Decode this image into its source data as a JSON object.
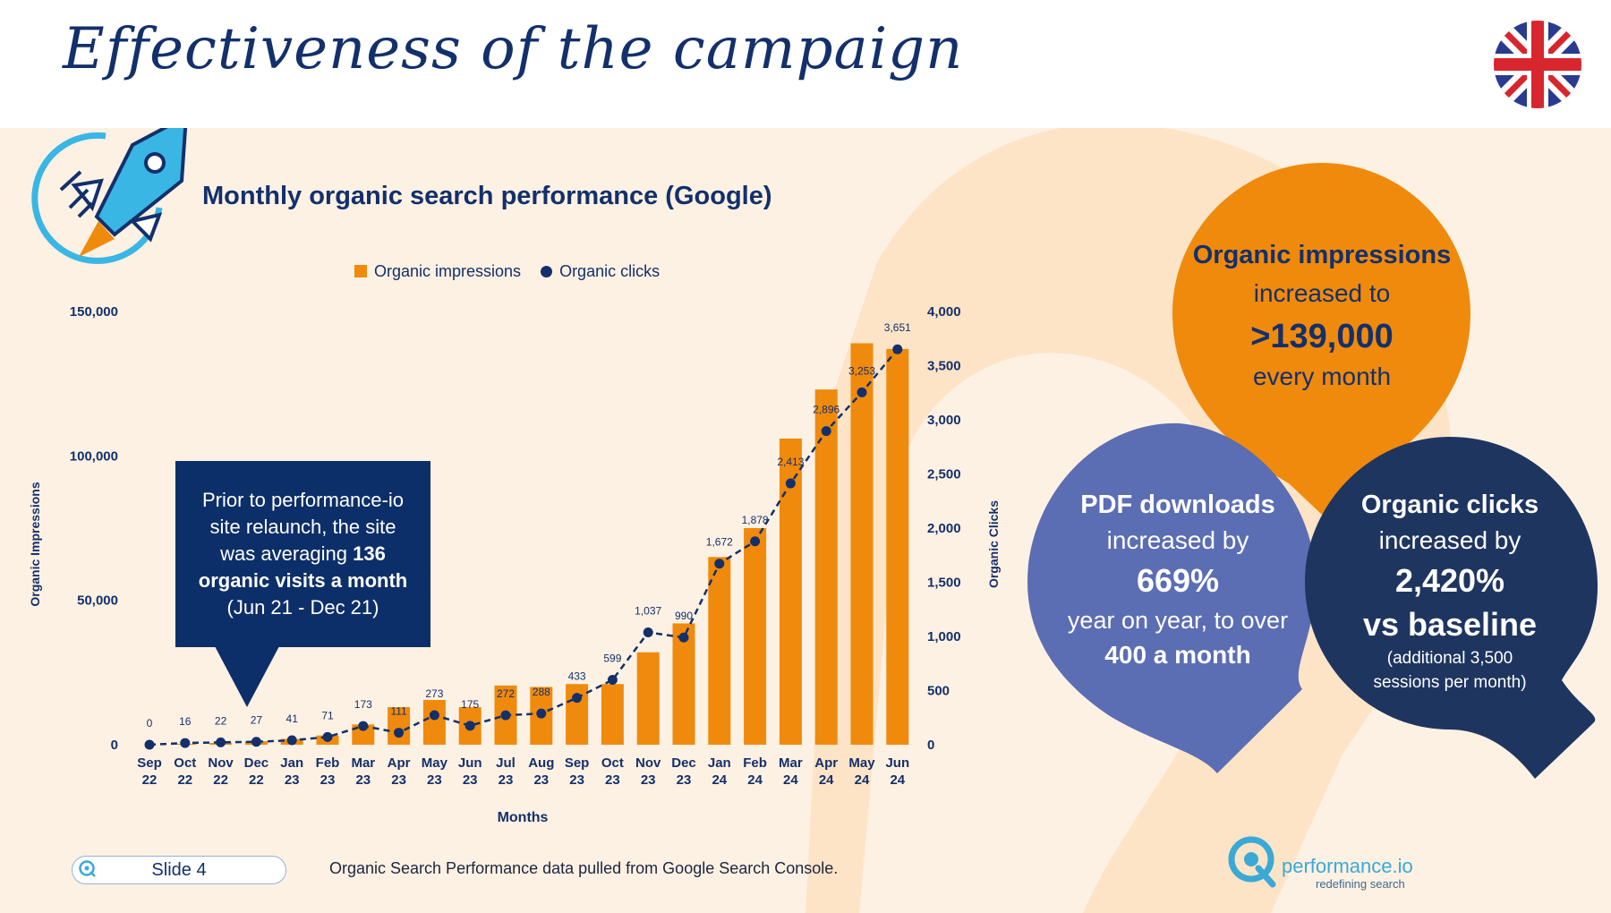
{
  "header": {
    "title": "Effectiveness of the campaign"
  },
  "panel": {
    "subtitle": "Monthly organic search performance (Google)"
  },
  "callout": {
    "line1": "Prior to performance-io",
    "line2": "site relaunch, the site",
    "line3_pre": "was averaging ",
    "line3_bold": "136",
    "line4_bold": "organic visits a month",
    "line5": "(Jun 21 - Dec 21)"
  },
  "bubbles": {
    "impressions": {
      "title": "Organic impressions",
      "l2": "increased to",
      "value": ">139,000",
      "l4": "every month"
    },
    "pdf": {
      "title": "PDF downloads",
      "l2": "increased by",
      "value": "669%",
      "l4": "year on year, to over",
      "l5": "400 a month"
    },
    "clicks": {
      "title": "Organic clicks",
      "l2": "increased by",
      "value": "2,420%",
      "value2": "vs baseline",
      "l5": "(additional 3,500",
      "l6": "sessions per month)"
    }
  },
  "footer": {
    "slide_label": "Slide 4",
    "source": "Organic Search Performance data pulled from Google Search Console.",
    "logo_name": "performance.io",
    "logo_tagline": "redefining search"
  },
  "colors": {
    "navy": "#13306b",
    "orange": "#f08a0c",
    "purple": "#5b6db3",
    "dark_navy": "#1e3560",
    "panel_bg": "#fdf1e3"
  },
  "chart_data": {
    "type": "bar",
    "categories": [
      "Sep 22",
      "Oct 22",
      "Nov 22",
      "Dec 22",
      "Jan 23",
      "Feb 23",
      "Mar 23",
      "Apr 23",
      "May 23",
      "Jun 23",
      "Jul 23",
      "Aug 23",
      "Sep 23",
      "Oct 23",
      "Nov 23",
      "Dec 23",
      "Jan 24",
      "Feb 24",
      "Mar 24",
      "Apr 24",
      "May 24",
      "Jun 24"
    ],
    "category_lines": [
      [
        "Sep",
        "22"
      ],
      [
        "Oct",
        "22"
      ],
      [
        "Nov",
        "22"
      ],
      [
        "Dec",
        "22"
      ],
      [
        "Jan",
        "23"
      ],
      [
        "Feb",
        "23"
      ],
      [
        "Mar",
        "23"
      ],
      [
        "Apr",
        "23"
      ],
      [
        "May",
        "23"
      ],
      [
        "Jun",
        "23"
      ],
      [
        "Jul",
        "23"
      ],
      [
        "Aug",
        "23"
      ],
      [
        "Sep",
        "23"
      ],
      [
        "Oct",
        "23"
      ],
      [
        "Nov",
        "23"
      ],
      [
        "Dec",
        "23"
      ],
      [
        "Jan",
        "24"
      ],
      [
        "Feb",
        "24"
      ],
      [
        "Mar",
        "24"
      ],
      [
        "Apr",
        "24"
      ],
      [
        "May",
        "24"
      ],
      [
        "Jun",
        "24"
      ]
    ],
    "series": [
      {
        "name": "Organic impressions",
        "type": "bar",
        "axis": "left",
        "values": [
          0,
          300,
          600,
          1200,
          2000,
          3200,
          7000,
          13000,
          15500,
          13000,
          20500,
          20000,
          21000,
          21000,
          32000,
          42000,
          65000,
          75000,
          106000,
          123000,
          139000,
          137000
        ]
      },
      {
        "name": "Organic clicks",
        "type": "line",
        "axis": "right",
        "values": [
          0,
          16,
          22,
          27,
          41,
          71,
          173,
          111,
          273,
          175,
          272,
          288,
          433,
          599,
          1037,
          990,
          1672,
          1878,
          2413,
          2896,
          3253,
          3651
        ],
        "labels": [
          "0",
          "16",
          "22",
          "27",
          "41",
          "71",
          "173",
          "111",
          "273",
          "175",
          "272",
          "288",
          "433",
          "599",
          "1,037",
          "990",
          "1,672",
          "1,878",
          "2,413",
          "2,896",
          "3,253",
          "3,651"
        ]
      }
    ],
    "xlabel": "Months",
    "ylabel_left": "Organic Impressions",
    "ylabel_right": "Organic Clicks",
    "ylim_left": [
      0,
      150000
    ],
    "ylim_right": [
      0,
      4000
    ],
    "left_ticks": [
      "0",
      "50,000",
      "100,000",
      "150,000"
    ],
    "right_ticks": [
      "0",
      "500",
      "1,000",
      "1,500",
      "2,000",
      "2,500",
      "3,000",
      "3,500",
      "4,000"
    ],
    "grid": false,
    "legend_position": "top"
  }
}
